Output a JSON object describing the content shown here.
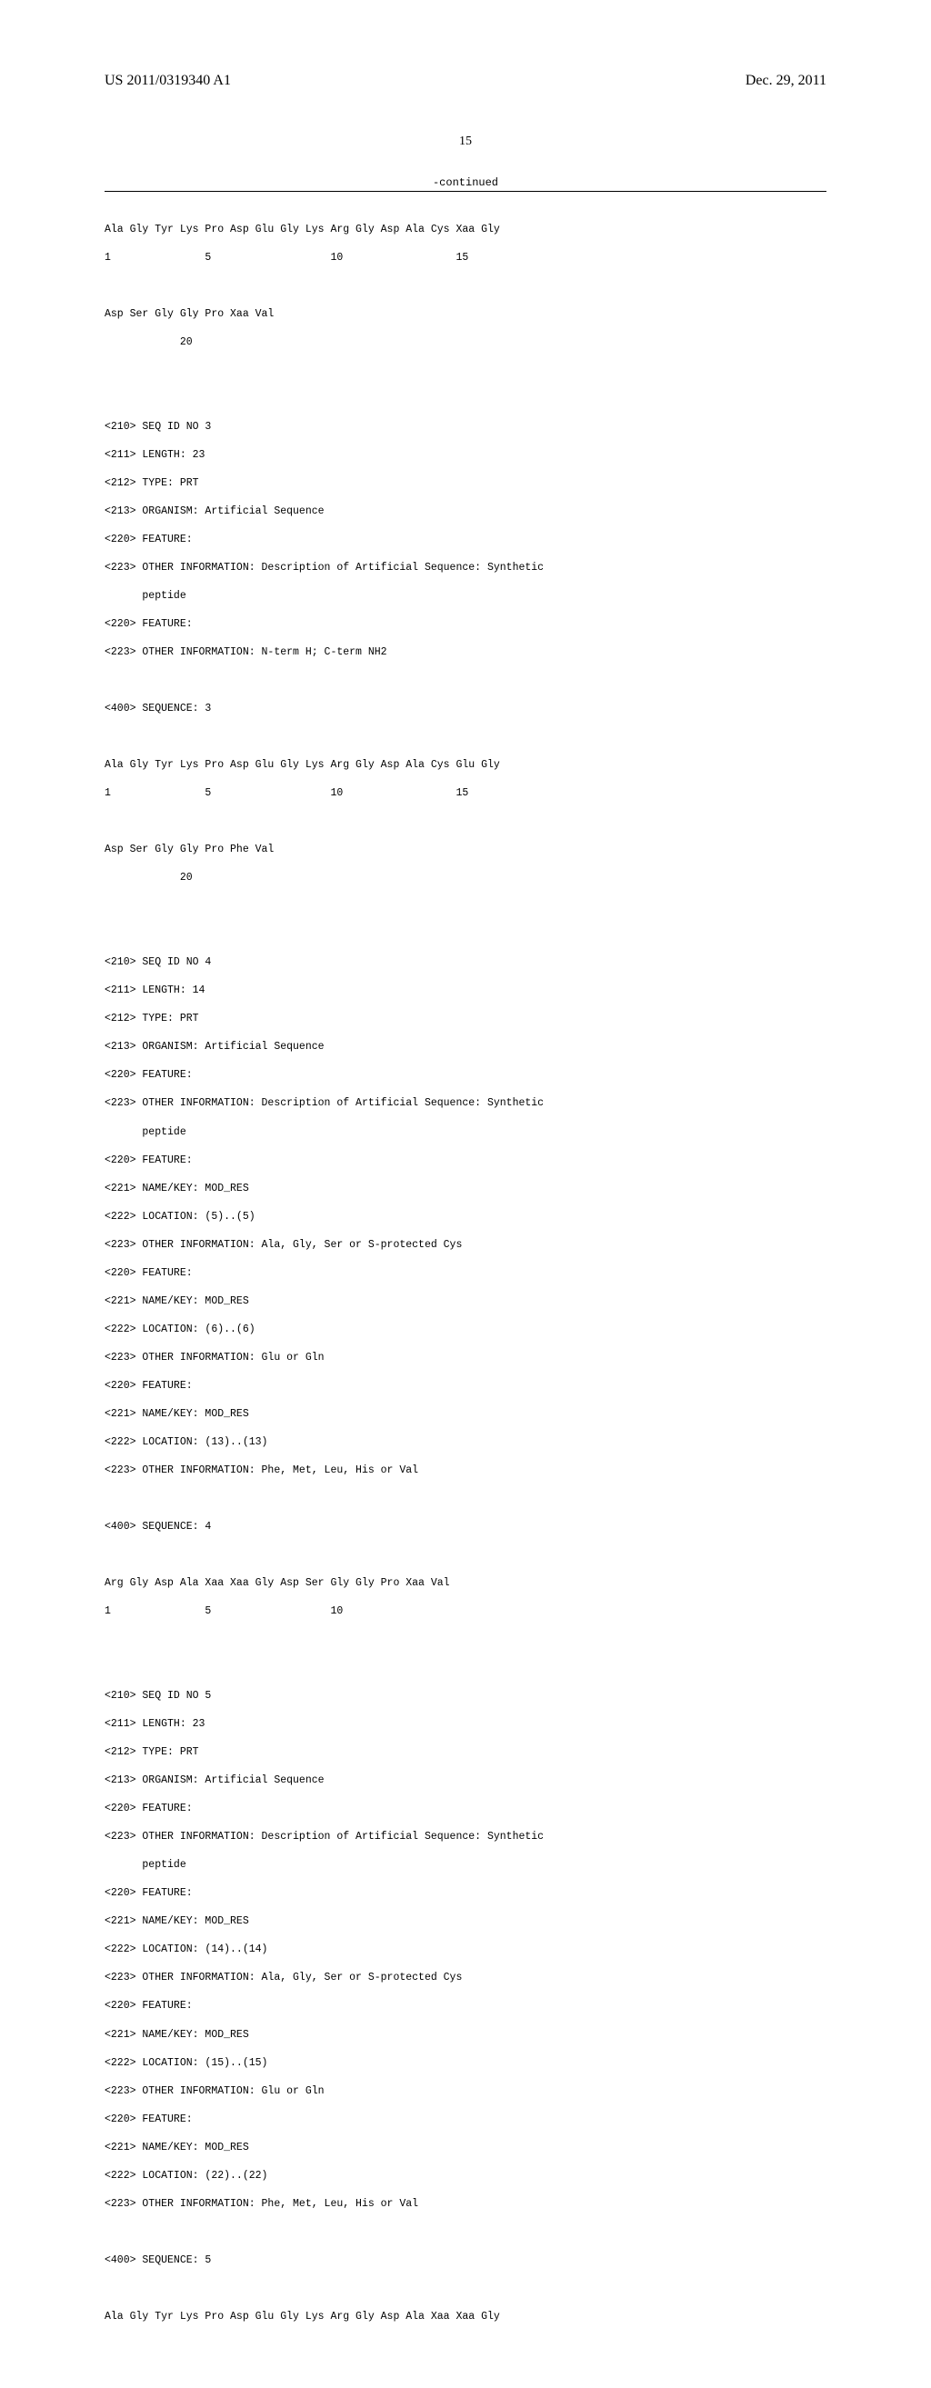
{
  "header": {
    "publication_number": "US 2011/0319340 A1",
    "publication_date": "Dec. 29, 2011"
  },
  "page_number": "15",
  "continued_label": "-continued",
  "sequences": {
    "seq2_fragment": {
      "line1": "Ala Gly Tyr Lys Pro Asp Glu Gly Lys Arg Gly Asp Ala Cys Xaa Gly",
      "pos1": "1               5                   10                  15",
      "line2": "Asp Ser Gly Gly Pro Xaa Val",
      "pos2": "            20"
    },
    "seq3": {
      "id": "<210> SEQ ID NO 3",
      "length": "<211> LENGTH: 23",
      "type": "<212> TYPE: PRT",
      "organism": "<213> ORGANISM: Artificial Sequence",
      "feature1": "<220> FEATURE:",
      "other_info1a": "<223> OTHER INFORMATION: Description of Artificial Sequence: Synthetic",
      "other_info1b": "      peptide",
      "feature2": "<220> FEATURE:",
      "other_info2": "<223> OTHER INFORMATION: N-term H; C-term NH2",
      "seq_header": "<400> SEQUENCE: 3",
      "line1": "Ala Gly Tyr Lys Pro Asp Glu Gly Lys Arg Gly Asp Ala Cys Glu Gly",
      "pos1": "1               5                   10                  15",
      "line2": "Asp Ser Gly Gly Pro Phe Val",
      "pos2": "            20"
    },
    "seq4": {
      "id": "<210> SEQ ID NO 4",
      "length": "<211> LENGTH: 14",
      "type": "<212> TYPE: PRT",
      "organism": "<213> ORGANISM: Artificial Sequence",
      "feature1": "<220> FEATURE:",
      "other_info1a": "<223> OTHER INFORMATION: Description of Artificial Sequence: Synthetic",
      "other_info1b": "      peptide",
      "feature2": "<220> FEATURE:",
      "name_key2": "<221> NAME/KEY: MOD_RES",
      "location2": "<222> LOCATION: (5)..(5)",
      "other_info2": "<223> OTHER INFORMATION: Ala, Gly, Ser or S-protected Cys",
      "feature3": "<220> FEATURE:",
      "name_key3": "<221> NAME/KEY: MOD_RES",
      "location3": "<222> LOCATION: (6)..(6)",
      "other_info3": "<223> OTHER INFORMATION: Glu or Gln",
      "feature4": "<220> FEATURE:",
      "name_key4": "<221> NAME/KEY: MOD_RES",
      "location4": "<222> LOCATION: (13)..(13)",
      "other_info4": "<223> OTHER INFORMATION: Phe, Met, Leu, His or Val",
      "seq_header": "<400> SEQUENCE: 4",
      "line1": "Arg Gly Asp Ala Xaa Xaa Gly Asp Ser Gly Gly Pro Xaa Val",
      "pos1": "1               5                   10"
    },
    "seq5": {
      "id": "<210> SEQ ID NO 5",
      "length": "<211> LENGTH: 23",
      "type": "<212> TYPE: PRT",
      "organism": "<213> ORGANISM: Artificial Sequence",
      "feature1": "<220> FEATURE:",
      "other_info1a": "<223> OTHER INFORMATION: Description of Artificial Sequence: Synthetic",
      "other_info1b": "      peptide",
      "feature2": "<220> FEATURE:",
      "name_key2": "<221> NAME/KEY: MOD_RES",
      "location2": "<222> LOCATION: (14)..(14)",
      "other_info2": "<223> OTHER INFORMATION: Ala, Gly, Ser or S-protected Cys",
      "feature3": "<220> FEATURE:",
      "name_key3": "<221> NAME/KEY: MOD_RES",
      "location3": "<222> LOCATION: (15)..(15)",
      "other_info3": "<223> OTHER INFORMATION: Glu or Gln",
      "feature4": "<220> FEATURE:",
      "name_key4": "<221> NAME/KEY: MOD_RES",
      "location4": "<222> LOCATION: (22)..(22)",
      "other_info4": "<223> OTHER INFORMATION: Phe, Met, Leu, His or Val",
      "seq_header": "<400> SEQUENCE: 5",
      "line1": "Ala Gly Tyr Lys Pro Asp Glu Gly Lys Arg Gly Asp Ala Xaa Xaa Gly"
    }
  }
}
